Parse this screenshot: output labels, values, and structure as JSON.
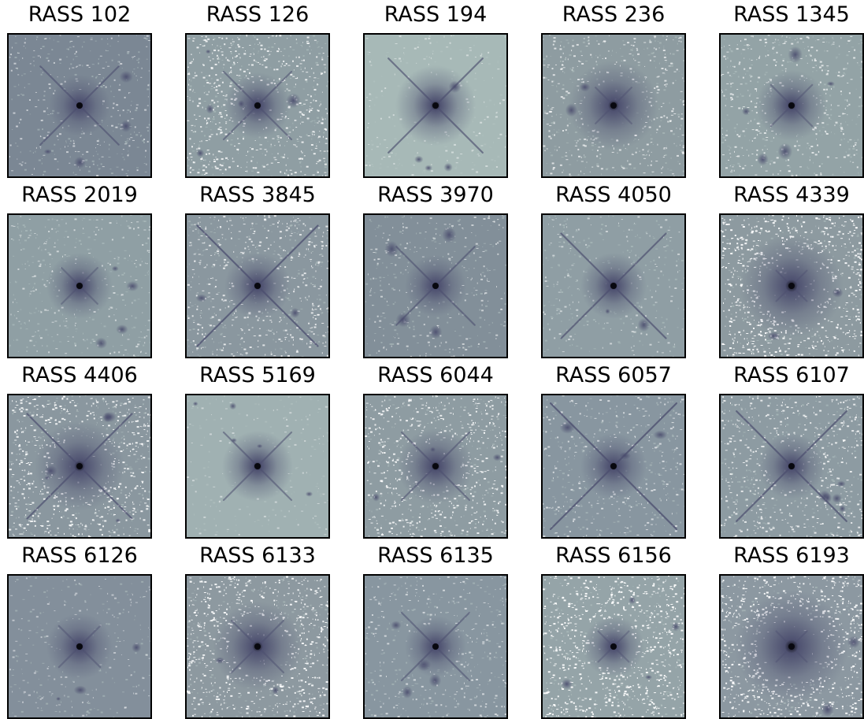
{
  "figure": {
    "panels": [
      {
        "label": "RASS 102",
        "noise": 0.35,
        "spikes": 0.55,
        "halo": 0.25,
        "bg": "#7b8794"
      },
      {
        "label": "RASS 126",
        "noise": 0.75,
        "spikes": 0.45,
        "halo": 0.3,
        "bg": "#8f9ea3"
      },
      {
        "label": "RASS 194",
        "noise": 0.2,
        "spikes": 0.7,
        "halo": 0.45,
        "bg": "#a7b9b7"
      },
      {
        "label": "RASS 236",
        "noise": 0.55,
        "spikes": 0.15,
        "halo": 0.55,
        "bg": "#8e9ca1"
      },
      {
        "label": "RASS 1345",
        "noise": 0.55,
        "spikes": 0.2,
        "halo": 0.35,
        "bg": "#93a3a6"
      },
      {
        "label": "RASS 2019",
        "noise": 0.35,
        "spikes": 0.15,
        "halo": 0.3,
        "bg": "#8f9fa4"
      },
      {
        "label": "RASS 3845",
        "noise": 0.65,
        "spikes": 0.95,
        "halo": 0.3,
        "bg": "#8a979f"
      },
      {
        "label": "RASS 3970",
        "noise": 0.35,
        "spikes": 0.55,
        "halo": 0.25,
        "bg": "#828f99"
      },
      {
        "label": "RASS 4050",
        "noise": 0.3,
        "spikes": 0.8,
        "halo": 0.3,
        "bg": "#8f9ea4"
      },
      {
        "label": "RASS 4339",
        "noise": 0.95,
        "spikes": 0.1,
        "halo": 0.7,
        "bg": "#8d9aa0"
      },
      {
        "label": "RASS 4406",
        "noise": 0.85,
        "spikes": 0.8,
        "halo": 0.55,
        "bg": "#8a979f"
      },
      {
        "label": "RASS 5169",
        "noise": 0.15,
        "spikes": 0.45,
        "halo": 0.35,
        "bg": "#a0b1b2"
      },
      {
        "label": "RASS 6044",
        "noise": 0.8,
        "spikes": 0.45,
        "halo": 0.4,
        "bg": "#8e9ca2"
      },
      {
        "label": "RASS 6057",
        "noise": 0.45,
        "spikes": 1.0,
        "halo": 0.3,
        "bg": "#8896a0"
      },
      {
        "label": "RASS 6107",
        "noise": 0.7,
        "spikes": 0.85,
        "halo": 0.3,
        "bg": "#8d9ba2"
      },
      {
        "label": "RASS 6126",
        "noise": 0.2,
        "spikes": 0.2,
        "halo": 0.3,
        "bg": "#838f9b"
      },
      {
        "label": "RASS 6133",
        "noise": 0.9,
        "spikes": 0.3,
        "halo": 0.55,
        "bg": "#8d99a0"
      },
      {
        "label": "RASS 6135",
        "noise": 0.4,
        "spikes": 0.45,
        "halo": 0.25,
        "bg": "#8896a0"
      },
      {
        "label": "RASS 6156",
        "noise": 0.95,
        "spikes": 0.1,
        "halo": 0.25,
        "bg": "#95a4a8"
      },
      {
        "label": "RASS 6193",
        "noise": 0.95,
        "spikes": 0.1,
        "halo": 0.8,
        "bg": "#8c98a1"
      }
    ],
    "colors": {
      "core": "#08080f",
      "halo": "#4b4d6e",
      "bright": "#ffffff",
      "faint": "#b5c6c4"
    }
  }
}
